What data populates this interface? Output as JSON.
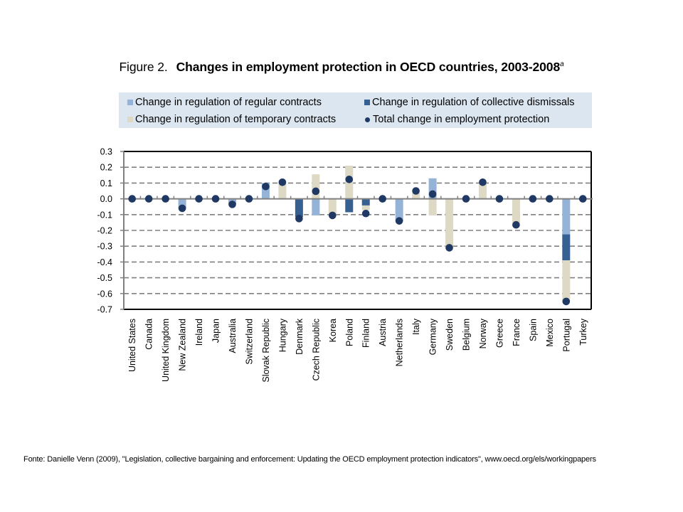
{
  "figure": {
    "prefix": "Figure 2.",
    "title": "Changes in employment protection in OECD countries, 2003-2008",
    "superscript": "a"
  },
  "source": "Fonte: Danielle Venn (2009), \"Legislation, collective bargaining and enforcement: Updating the OECD employment protection indicators\", www.oecd.org/els/workingpapers",
  "colors": {
    "regular": "#95b3d7",
    "collective": "#376092",
    "temporary": "#ddd9c4",
    "total": "#1f3864",
    "grid": "#808080",
    "axis": "#808080",
    "legend_bg": "#dce6f1"
  },
  "chart_data": {
    "type": "bar",
    "stacked": true,
    "title": "Changes in employment protection in OECD countries, 2003-2008",
    "xlabel": "",
    "ylabel": "",
    "ylim": [
      -0.7,
      0.3
    ],
    "yticks": [
      0.3,
      0.2,
      0.1,
      0.0,
      -0.1,
      -0.2,
      -0.3,
      -0.4,
      -0.5,
      -0.6,
      -0.7
    ],
    "ytick_labels": [
      "0.3",
      "0.2",
      "0.1",
      "0.0",
      "-0.1",
      "-0.2",
      "-0.3",
      "-0.4",
      "-0.5",
      "-0.6",
      "-0.7"
    ],
    "grid": "horizontal dashed",
    "legend_position": "top",
    "categories": [
      "United States",
      "Canada",
      "United Kingdom",
      "New Zealand",
      "Ireland",
      "Japan",
      "Australia",
      "Switzerland",
      "Slovak Republic",
      "Hungary",
      "Denmark",
      "Czech Republic",
      "Korea",
      "Poland",
      "Finland",
      "Austria",
      "Netherlands",
      "Italy",
      "Germany",
      "Sweden",
      "Belgium",
      "Norway",
      "Greece",
      "France",
      "Spain",
      "Mexico",
      "Portugal",
      "Turkey"
    ],
    "series": [
      {
        "name": "Change in regulation of regular contracts",
        "key": "regular",
        "kind": "bar",
        "values": [
          0,
          0,
          0,
          -0.06,
          0,
          0,
          -0.035,
          0,
          0.1,
          0,
          0,
          -0.105,
          0,
          0,
          0,
          0,
          -0.14,
          0,
          0.13,
          0,
          0,
          0,
          0,
          0,
          0,
          0,
          -0.225,
          0
        ]
      },
      {
        "name": "Change in regulation of collective dismissals",
        "key": "collective",
        "kind": "bar",
        "values": [
          0,
          0,
          0,
          0,
          0,
          0,
          0,
          0,
          0,
          0,
          -0.115,
          0,
          0,
          -0.085,
          -0.042,
          0,
          0,
          0,
          0,
          0,
          0,
          0,
          0,
          0,
          0,
          0,
          -0.165,
          0
        ]
      },
      {
        "name": "Change in regulation of temporary contracts",
        "key": "temporary",
        "kind": "bar",
        "values": [
          0,
          0,
          0,
          0,
          0,
          0,
          0,
          0,
          0,
          0.1,
          0,
          0.155,
          -0.1,
          0.21,
          -0.03,
          0,
          0,
          0.04,
          -0.105,
          -0.305,
          0,
          0.1,
          0,
          -0.16,
          0,
          0,
          -0.255,
          0
        ]
      },
      {
        "name": "Total change in employment protection",
        "key": "total",
        "kind": "dot",
        "values": [
          0,
          0,
          0,
          -0.06,
          0,
          0,
          -0.035,
          0,
          0.078,
          0.105,
          -0.125,
          0.048,
          -0.105,
          0.123,
          -0.093,
          0,
          -0.14,
          0.05,
          0.03,
          -0.31,
          0,
          0.105,
          0,
          -0.165,
          0,
          0,
          -0.65,
          0
        ]
      }
    ]
  },
  "legend": [
    {
      "label": "Change in regulation of regular contracts",
      "key": "regular",
      "shape": "square"
    },
    {
      "label": "Change in regulation of collective dismissals",
      "key": "collective",
      "shape": "square"
    },
    {
      "label": "Change in regulation of temporary contracts",
      "key": "temporary",
      "shape": "square"
    },
    {
      "label": "Total change in employment protection",
      "key": "total",
      "shape": "dot"
    }
  ]
}
